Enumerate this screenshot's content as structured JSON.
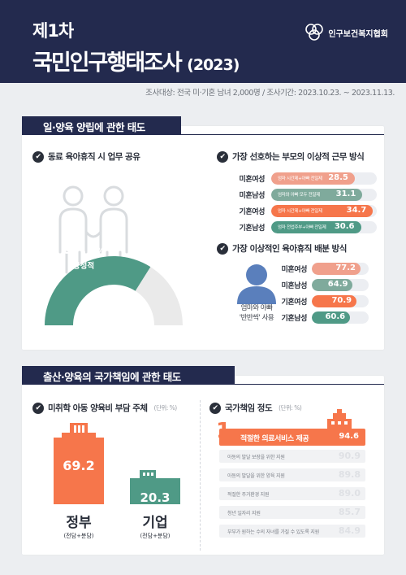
{
  "header": {
    "title_line1": "제1차",
    "title_line2": "국민인구행태조사",
    "title_year": "(2023)",
    "org_name": "인구보건복지협회"
  },
  "survey_info": "조사대상: 전국 미·기혼 남녀 2,000명  /  조사기간: 2023.10.23. ~ 2023.11.13.",
  "section1": {
    "title": "일·양육 양립에 관한 태도",
    "q1": {
      "title": "동료 육아휴직 시 업무 공유",
      "value_text": "67.9",
      "pct_sign": "%",
      "label": "긍정적",
      "ghost_value": "67",
      "value": 67.9
    },
    "q2": {
      "title": "가장 선호하는 부모의 이상적 근무 방식",
      "rows": [
        {
          "label": "미혼여성",
          "desc": "엄마 시간제+아빠 전일제",
          "value": 28.5,
          "color": "#f0a08c"
        },
        {
          "label": "미혼남성",
          "desc": "엄마와 아빠 모두 전일제",
          "value": 31.1,
          "color": "#7faa9c"
        },
        {
          "label": "기혼여성",
          "desc": "엄마 시간제+아빠 전일제",
          "value": 34.7,
          "color": "#f6764b"
        },
        {
          "label": "기혼남성",
          "desc": "엄마 전업주부+아빠 전일제",
          "value": 30.6,
          "color": "#4f9a86"
        }
      ]
    },
    "q3": {
      "title": "가장 이상적인 육아휴직 배분 방식",
      "caption_line1": "엄마와 아빠",
      "caption_line2": "'반반씩' 사용",
      "rows": [
        {
          "label": "미혼여성",
          "value": 77.2,
          "color": "#f0a08c"
        },
        {
          "label": "미혼남성",
          "value": 64.9,
          "color": "#7faa9c"
        },
        {
          "label": "기혼여성",
          "value": 70.9,
          "color": "#f6764b"
        },
        {
          "label": "기혼남성",
          "value": 60.6,
          "color": "#4f9a86"
        }
      ]
    }
  },
  "section2": {
    "title": "출산·양육의 국가책임에 관한 태도",
    "q1": {
      "title": "미취학 아동 양육비 부담 주체",
      "unit": "(단위: %)",
      "gov": {
        "value": 69.2,
        "name": "정부",
        "sub": "(전담+분담)"
      },
      "corp": {
        "value": 20.3,
        "name": "기업",
        "sub": "(전담+분담)"
      }
    },
    "q2": {
      "title": "국가책임 정도",
      "unit": "(단위: %)",
      "top": {
        "rank": "1",
        "label": "적절한 의료서비스 제공",
        "value": 94.6
      },
      "rows": [
        {
          "label": "아동의 발달 보장을 위한 지원",
          "value": 90.9
        },
        {
          "label": "아동의 발달을 위한 양육 지원",
          "value": 89.8
        },
        {
          "label": "적절한 주거환경 지원",
          "value": 89.0
        },
        {
          "label": "청년 일자리 지원",
          "value": 85.7
        },
        {
          "label": "부부가 원하는 수의 자녀를 가질 수 있도록 지원",
          "value": 84.9
        }
      ]
    }
  },
  "colors": {
    "navy": "#232a4e",
    "green": "#4f9a86",
    "orange": "#f6764b",
    "light_gray": "#eaeaea"
  }
}
